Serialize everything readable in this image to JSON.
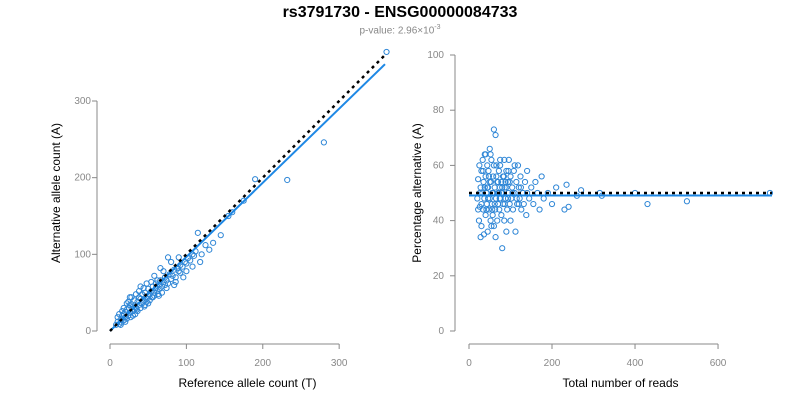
{
  "title": "rs3791730 - ENSG00000084733",
  "subtitle_prefix": "p-value: 2.96×10",
  "subtitle_exp": "-3",
  "colors": {
    "points": "#2e86d6",
    "fit": "#1e88e5",
    "reference": "#000000",
    "axes": "#888888"
  },
  "chart_data": [
    {
      "type": "scatter",
      "xlabel": "Reference allele count (T)",
      "ylabel": "Alternative allele count (A)",
      "xticks": [
        0,
        100,
        200,
        300
      ],
      "yticks": [
        0,
        100,
        200,
        300
      ],
      "xlim": [
        0,
        360
      ],
      "ylim": [
        0,
        360
      ],
      "fit_line": {
        "x": [
          0,
          360
        ],
        "y": [
          0,
          348
        ]
      },
      "reference_line": {
        "x": [
          0,
          360
        ],
        "y": [
          0,
          360
        ]
      },
      "points": [
        [
          8,
          8
        ],
        [
          10,
          12
        ],
        [
          12,
          9
        ],
        [
          14,
          15
        ],
        [
          15,
          11
        ],
        [
          16,
          20
        ],
        [
          18,
          14
        ],
        [
          18,
          22
        ],
        [
          20,
          18
        ],
        [
          20,
          25
        ],
        [
          22,
          16
        ],
        [
          22,
          28
        ],
        [
          24,
          20
        ],
        [
          25,
          30
        ],
        [
          26,
          24
        ],
        [
          27,
          18
        ],
        [
          28,
          35
        ],
        [
          30,
          26
        ],
        [
          30,
          32
        ],
        [
          32,
          40
        ],
        [
          33,
          22
        ],
        [
          34,
          30
        ],
        [
          35,
          28
        ],
        [
          36,
          38
        ],
        [
          38,
          34
        ],
        [
          38,
          44
        ],
        [
          40,
          30
        ],
        [
          40,
          42
        ],
        [
          42,
          36
        ],
        [
          42,
          48
        ],
        [
          44,
          40
        ],
        [
          45,
          32
        ],
        [
          46,
          50
        ],
        [
          48,
          42
        ],
        [
          48,
          38
        ],
        [
          50,
          46
        ],
        [
          50,
          55
        ],
        [
          52,
          40
        ],
        [
          52,
          48
        ],
        [
          54,
          52
        ],
        [
          55,
          44
        ],
        [
          56,
          58
        ],
        [
          58,
          50
        ],
        [
          58,
          46
        ],
        [
          60,
          56
        ],
        [
          60,
          62
        ],
        [
          62,
          52
        ],
        [
          63,
          48
        ],
        [
          64,
          60
        ],
        [
          65,
          55
        ],
        [
          66,
          66
        ],
        [
          68,
          58
        ],
        [
          68,
          50
        ],
        [
          70,
          64
        ],
        [
          72,
          60
        ],
        [
          72,
          70
        ],
        [
          74,
          66
        ],
        [
          76,
          62
        ],
        [
          78,
          74
        ],
        [
          80,
          68
        ],
        [
          82,
          72
        ],
        [
          84,
          80
        ],
        [
          86,
          70
        ],
        [
          88,
          82
        ],
        [
          90,
          78
        ],
        [
          92,
          86
        ],
        [
          95,
          84
        ],
        [
          98,
          90
        ],
        [
          100,
          88
        ],
        [
          102,
          95
        ],
        [
          105,
          92
        ],
        [
          108,
          100
        ],
        [
          110,
          98
        ],
        [
          112,
          104
        ],
        [
          115,
          128
        ],
        [
          120,
          100
        ],
        [
          125,
          112
        ],
        [
          130,
          106
        ],
        [
          135,
          115
        ],
        [
          145,
          125
        ],
        [
          155,
          150
        ],
        [
          160,
          155
        ],
        [
          175,
          170
        ],
        [
          190,
          198
        ],
        [
          232,
          197
        ],
        [
          280,
          246
        ],
        [
          362,
          364
        ],
        [
          12,
          22
        ],
        [
          18,
          30
        ],
        [
          24,
          38
        ],
        [
          30,
          20
        ],
        [
          36,
          26
        ],
        [
          44,
          56
        ],
        [
          50,
          36
        ],
        [
          56,
          44
        ],
        [
          62,
          66
        ],
        [
          10,
          18
        ],
        [
          14,
          8
        ],
        [
          20,
          12
        ],
        [
          26,
          34
        ],
        [
          32,
          28
        ],
        [
          38,
          52
        ],
        [
          46,
          34
        ],
        [
          54,
          64
        ],
        [
          64,
          46
        ],
        [
          70,
          78
        ],
        [
          74,
          56
        ],
        [
          80,
          90
        ],
        [
          86,
          64
        ],
        [
          92,
          76
        ],
        [
          96,
          70
        ],
        [
          100,
          78
        ],
        [
          108,
          84
        ],
        [
          118,
          90
        ],
        [
          26,
          44
        ],
        [
          34,
          48
        ],
        [
          40,
          58
        ],
        [
          48,
          62
        ],
        [
          58,
          72
        ],
        [
          66,
          82
        ],
        [
          76,
          96
        ],
        [
          84,
          60
        ],
        [
          90,
          96
        ],
        [
          16,
          26
        ],
        [
          22,
          36
        ],
        [
          28,
          44
        ]
      ]
    },
    {
      "type": "scatter",
      "xlabel": "Total number of reads",
      "ylabel": "Percentage alternative (A)",
      "xticks": [
        0,
        200,
        400,
        600
      ],
      "yticks": [
        0,
        20,
        40,
        60,
        80,
        100
      ],
      "xlim": [
        0,
        730
      ],
      "ylim": [
        0,
        100
      ],
      "fit_line": {
        "x": [
          0,
          730
        ],
        "y": [
          49.1,
          49.1
        ]
      },
      "reference_line": {
        "x": [
          0,
          730
        ],
        "y": [
          50,
          50
        ]
      },
      "points": [
        [
          20,
          48
        ],
        [
          22,
          55
        ],
        [
          24,
          40
        ],
        [
          25,
          60
        ],
        [
          26,
          45
        ],
        [
          28,
          52
        ],
        [
          30,
          38
        ],
        [
          30,
          58
        ],
        [
          32,
          50
        ],
        [
          33,
          62
        ],
        [
          34,
          44
        ],
        [
          35,
          54
        ],
        [
          36,
          35
        ],
        [
          37,
          48
        ],
        [
          38,
          64
        ],
        [
          40,
          42
        ],
        [
          40,
          56
        ],
        [
          42,
          50
        ],
        [
          43,
          46
        ],
        [
          44,
          60
        ],
        [
          45,
          36
        ],
        [
          46,
          52
        ],
        [
          47,
          58
        ],
        [
          48,
          44
        ],
        [
          50,
          66
        ],
        [
          50,
          48
        ],
        [
          52,
          40
        ],
        [
          53,
          54
        ],
        [
          54,
          62
        ],
        [
          55,
          46
        ],
        [
          56,
          50
        ],
        [
          57,
          42
        ],
        [
          58,
          56
        ],
        [
          60,
          38
        ],
        [
          60,
          60
        ],
        [
          62,
          52
        ],
        [
          63,
          44
        ],
        [
          64,
          71
        ],
        [
          65,
          48
        ],
        [
          66,
          56
        ],
        [
          68,
          54
        ],
        [
          68,
          40
        ],
        [
          70,
          50
        ],
        [
          70,
          46
        ],
        [
          72,
          58
        ],
        [
          73,
          44
        ],
        [
          74,
          52
        ],
        [
          75,
          60
        ],
        [
          76,
          48
        ],
        [
          78,
          42
        ],
        [
          78,
          54
        ],
        [
          80,
          30
        ],
        [
          80,
          50
        ],
        [
          82,
          46
        ],
        [
          84,
          56
        ],
        [
          85,
          40
        ],
        [
          86,
          52
        ],
        [
          88,
          48
        ],
        [
          90,
          36
        ],
        [
          90,
          58
        ],
        [
          92,
          44
        ],
        [
          94,
          54
        ],
        [
          95,
          50
        ],
        [
          96,
          62
        ],
        [
          98,
          46
        ],
        [
          100,
          40
        ],
        [
          100,
          56
        ],
        [
          102,
          48
        ],
        [
          104,
          52
        ],
        [
          106,
          44
        ],
        [
          108,
          58
        ],
        [
          110,
          50
        ],
        [
          112,
          36
        ],
        [
          114,
          54
        ],
        [
          116,
          46
        ],
        [
          118,
          60
        ],
        [
          120,
          52
        ],
        [
          122,
          48
        ],
        [
          124,
          56
        ],
        [
          126,
          44
        ],
        [
          130,
          50
        ],
        [
          132,
          46
        ],
        [
          135,
          54
        ],
        [
          138,
          42
        ],
        [
          140,
          58
        ],
        [
          145,
          48
        ],
        [
          150,
          52
        ],
        [
          155,
          46
        ],
        [
          160,
          54
        ],
        [
          165,
          50
        ],
        [
          170,
          44
        ],
        [
          175,
          56
        ],
        [
          180,
          48
        ],
        [
          190,
          50
        ],
        [
          200,
          46
        ],
        [
          210,
          52
        ],
        [
          230,
          44
        ],
        [
          235,
          53
        ],
        [
          240,
          45
        ],
        [
          320,
          49
        ],
        [
          400,
          50
        ],
        [
          430,
          46
        ],
        [
          525,
          47
        ],
        [
          725,
          50
        ],
        [
          315,
          50
        ],
        [
          260,
          49
        ],
        [
          270,
          51
        ],
        [
          22,
          44
        ],
        [
          26,
          50
        ],
        [
          30,
          46
        ],
        [
          34,
          58
        ],
        [
          38,
          52
        ],
        [
          42,
          44
        ],
        [
          46,
          48
        ],
        [
          50,
          54
        ],
        [
          54,
          38
        ],
        [
          58,
          50
        ],
        [
          62,
          46
        ],
        [
          66,
          60
        ],
        [
          70,
          54
        ],
        [
          74,
          48
        ],
        [
          78,
          50
        ],
        [
          82,
          56
        ],
        [
          86,
          46
        ],
        [
          90,
          52
        ],
        [
          94,
          48
        ],
        [
          98,
          54
        ],
        [
          60,
          73
        ],
        [
          75,
          62
        ],
        [
          85,
          62
        ],
        [
          95,
          58
        ],
        [
          110,
          60
        ],
        [
          120,
          46
        ],
        [
          28,
          34
        ],
        [
          40,
          64
        ],
        [
          52,
          64
        ],
        [
          64,
          34
        ],
        [
          44,
          52
        ],
        [
          48,
          56
        ],
        [
          56,
          44
        ],
        [
          72,
          50
        ],
        [
          80,
          52
        ],
        [
          88,
          54
        ],
        [
          105,
          50
        ],
        [
          115,
          48
        ],
        [
          125,
          52
        ],
        [
          140,
          50
        ]
      ]
    }
  ]
}
